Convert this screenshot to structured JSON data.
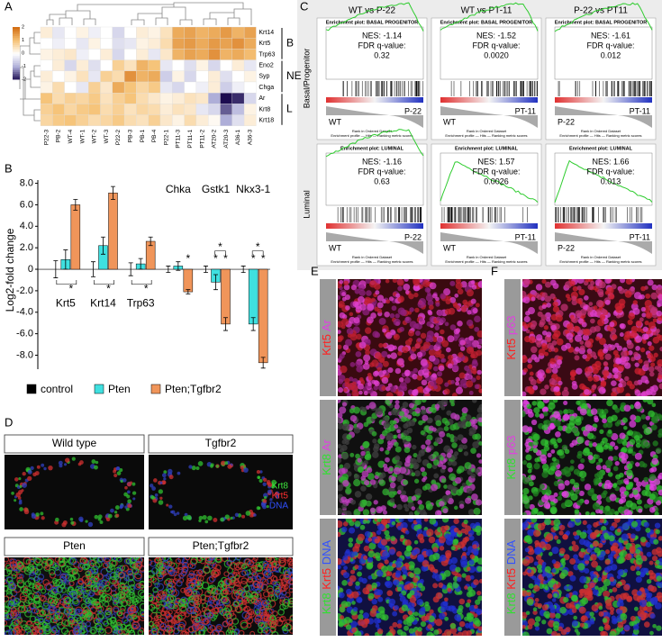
{
  "panel_labels": [
    "A",
    "B",
    "C",
    "D",
    "E",
    "F"
  ],
  "heatmap": {
    "colorbar_ticks": [
      2,
      1,
      0,
      -1,
      -2
    ],
    "rows": [
      "Krt14",
      "Krt5",
      "Trp63",
      "Eno2",
      "Syp",
      "Chga",
      "Ar",
      "Krt8",
      "Krt18"
    ],
    "columns": [
      "P22-3",
      "PB-2",
      "WT-4",
      "WT-1",
      "WT-2",
      "WT-3",
      "P22-2",
      "PB-3",
      "PB-1",
      "PB-4",
      "P22-1",
      "PT11-3",
      "PT11-1",
      "PT11-2",
      "AT20-2",
      "AT20-3",
      "A36-1",
      "A36-3"
    ],
    "groups": [
      "B",
      "NE",
      "L"
    ],
    "values": [
      [
        0.3,
        -0.3,
        0,
        0.2,
        -0.2,
        0,
        -0.5,
        0,
        0.3,
        0.2,
        0.5,
        1.3,
        1.4,
        1.2,
        1.3,
        1.5,
        1.2,
        1.4
      ],
      [
        0,
        -0.2,
        0,
        -0.3,
        0.2,
        0,
        -0.4,
        -0.3,
        0.2,
        0.3,
        0.6,
        1.4,
        1.5,
        1.3,
        1.5,
        1.4,
        1.6,
        1.3
      ],
      [
        0.2,
        0.3,
        0.4,
        -0.2,
        0,
        0.3,
        -0.5,
        0,
        0.3,
        -0.3,
        0.4,
        1.2,
        1.4,
        1.3,
        1.6,
        1.2,
        1.3,
        1.1
      ],
      [
        0,
        0.3,
        -0.5,
        0.3,
        -0.4,
        0,
        0.8,
        0.5,
        1.2,
        1.0,
        -0.3,
        0,
        -0.4,
        0.2,
        -0.5,
        0,
        0.3,
        -0.3
      ],
      [
        0.3,
        0,
        0.2,
        0.5,
        -0.3,
        0.8,
        0.6,
        1.6,
        1.2,
        1.3,
        -0.6,
        0.2,
        -0.5,
        0,
        0.3,
        -0.4,
        0,
        0.2
      ],
      [
        0.2,
        0.6,
        0,
        -0.3,
        0.8,
        0.4,
        1.3,
        1.0,
        0.7,
        0.9,
        -0.3,
        -0.5,
        0,
        -0.2,
        0.3,
        -0.6,
        -0.2,
        0
      ],
      [
        1.0,
        0.6,
        0.8,
        0.7,
        0.9,
        0.5,
        0.8,
        1.0,
        0.6,
        0.4,
        0.2,
        0.3,
        0.5,
        0.4,
        -1.0,
        -2.0,
        -1.8,
        -0.5
      ],
      [
        0.8,
        1.0,
        0.7,
        0.9,
        1.0,
        0.6,
        0.8,
        0.5,
        0.7,
        0.6,
        0.3,
        0.5,
        0.4,
        -0.3,
        -0.5,
        -1.5,
        -0.8,
        0.2
      ],
      [
        0.7,
        0.9,
        1.0,
        0.8,
        0.6,
        0.7,
        0.9,
        0.6,
        0.5,
        0.8,
        0.4,
        0.2,
        0.6,
        0.3,
        0.1,
        -1.0,
        -0.4,
        0.3
      ]
    ]
  },
  "chart_data": {
    "type": "bar",
    "ylabel": "Log2-fold change",
    "categories": [
      "Krt5",
      "Krt14",
      "Trp63",
      "Chka",
      "Gstk1",
      "Nkx3-1"
    ],
    "series": [
      {
        "name": "control",
        "color": "#000000",
        "values": [
          0,
          0,
          0,
          0,
          0,
          0
        ],
        "errors": [
          0.8,
          0.7,
          0.6,
          0.3,
          0.3,
          0.3
        ]
      },
      {
        "name": "Pten",
        "color": "#3fe0e0",
        "values": [
          0.9,
          2.2,
          0.5,
          0.3,
          -1.2,
          -5.1
        ],
        "errors": [
          0.9,
          0.8,
          0.5,
          0.4,
          0.7,
          0.6
        ]
      },
      {
        "name": "Pten;Tgfbr2",
        "color": "#f0955a",
        "values": [
          6.0,
          7.1,
          2.6,
          -2.1,
          -5.1,
          -8.7
        ],
        "errors": [
          0.5,
          0.6,
          0.4,
          0.2,
          0.6,
          0.5
        ]
      }
    ],
    "stars": [
      [
        "*"
      ],
      [
        "*"
      ],
      [
        "*"
      ],
      [
        "*"
      ],
      [
        "*",
        "*",
        "*"
      ],
      [
        "*",
        "*",
        "*"
      ]
    ],
    "ylim": [
      -9.3,
      8.3
    ],
    "yticks": [
      {
        "value": 8,
        "label": "8.0"
      },
      {
        "value": 6,
        "label": "6.0"
      },
      {
        "value": 4,
        "label": "4.0"
      },
      {
        "value": 2,
        "label": "2.0"
      },
      0,
      {
        "value": -2,
        "label": "-2.0"
      },
      {
        "value": -4,
        "label": "-4.0"
      },
      {
        "value": -6,
        "label": "-6.0"
      },
      {
        "value": -8,
        "label": "-8.0"
      }
    ]
  },
  "gsea": {
    "columns": [
      "WT vs P-22",
      "WT vs PT-11",
      "P-22 vs PT11"
    ],
    "rows": [
      "Basal/Progenitor",
      "Luminal"
    ],
    "xlabel": "Rank in Ordered Dataset",
    "legend": "Enrichment profile — Hits — Ranking metric scores",
    "plots": [
      {
        "title": "Enrichment plot: BASAL PROGENITOR",
        "nes": "NES: -1.14",
        "fdr_label": "FDR q-value:",
        "fdr": "0.32",
        "left": "WT",
        "right": "P-22"
      },
      {
        "title": "Enrichment plot: BASAL PROGENITOR",
        "nes": "NES: -1.52",
        "fdr_label": "FDR q-value:",
        "fdr": "0.0020",
        "left": "WT",
        "right": "PT-11"
      },
      {
        "title": "Enrichment plot: BASAL PROGENITOR",
        "nes": "NES: -1.61",
        "fdr_label": "FDR q-value:",
        "fdr": "0.012",
        "left": "P-22",
        "right": "PT-11"
      },
      {
        "title": "Enrichment plot: LUMINAL",
        "nes": "NES: -1.16",
        "fdr_label": "FDR q-value:",
        "fdr": "0.63",
        "left": "WT",
        "right": "P-22"
      },
      {
        "title": "Enrichment plot: LUMINAL",
        "nes": "NES: 1.57",
        "fdr_label": "FDR q-value:",
        "fdr": "0.0026",
        "left": "WT",
        "right": "PT-11"
      },
      {
        "title": "Enrichment plot: LUMINAL",
        "nes": "NES: 1.66",
        "fdr_label": "FDR q-value:",
        "fdr": "0.013",
        "left": "P-22",
        "right": "PT-11"
      }
    ]
  },
  "panel_d": {
    "images": [
      "Wild type",
      "Tgfbr2",
      "Pten",
      "Pten;Tgfbr2"
    ],
    "legend": [
      {
        "text": "Krt8",
        "color": "#3ee83e"
      },
      {
        "text": "Krt5",
        "color": "#ff3030"
      },
      {
        "text": "DNA",
        "color": "#3050ff"
      }
    ]
  },
  "panel_e": {
    "rows": [
      [
        {
          "text": "Krt5",
          "color": "#ff2020"
        },
        {
          "text": "Ar",
          "color": "#e040e0"
        }
      ],
      [
        {
          "text": "Krt8",
          "color": "#30e030"
        },
        {
          "text": "Ar",
          "color": "#e040e0"
        }
      ],
      [
        {
          "text": "Krt8",
          "color": "#30e030"
        },
        {
          "text": "Krt5",
          "color": "#ff2020"
        },
        {
          "text": "DNA",
          "color": "#3050ff"
        }
      ]
    ]
  },
  "panel_f": {
    "rows": [
      [
        {
          "text": "Krt5",
          "color": "#ff2020"
        },
        {
          "text": "p63",
          "color": "#e040e0"
        }
      ],
      [
        {
          "text": "Krt8",
          "color": "#30e030"
        },
        {
          "text": "p63",
          "color": "#e040e0"
        }
      ],
      [
        {
          "text": "Krt8",
          "color": "#30e030"
        },
        {
          "text": "Krt5",
          "color": "#ff2020"
        },
        {
          "text": "DNA",
          "color": "#3050ff"
        }
      ]
    ]
  }
}
